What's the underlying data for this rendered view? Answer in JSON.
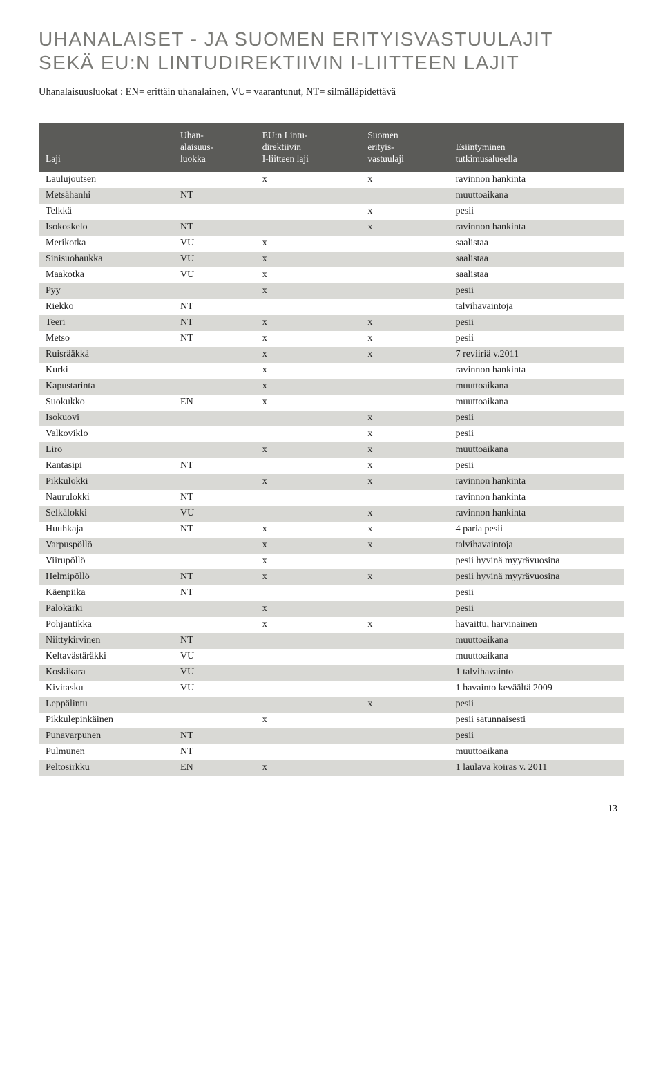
{
  "title_line1": "UHANALAISET - JA SUOMEN ERITYISVASTUULAJIT",
  "title_line2": "SEKÄ EU:N LINTUDIREKTIIVIN I-LIITTEEN LAJIT",
  "subtitle": "Uhanalaisuusluokat : EN= erittäin uhanalainen, VU= vaarantunut, NT= silmälläpidettävä",
  "columns": [
    "Laji",
    "Uhan-\nalaisuus-\nluokka",
    "EU:n Lintu-\ndirektiivin\nI-liitteen laji",
    "Suomen\nerityis-\nvastuulaji",
    "Esiintyminen\ntutkimusalueella"
  ],
  "rows": [
    [
      "Laulujoutsen",
      "",
      "x",
      "x",
      "ravinnon hankinta"
    ],
    [
      "Metsähanhi",
      "NT",
      "",
      "",
      "muuttoaikana"
    ],
    [
      "Telkkä",
      "",
      "",
      "x",
      "pesii"
    ],
    [
      "Isokoskelo",
      "NT",
      "",
      "x",
      "ravinnon hankinta"
    ],
    [
      "Merikotka",
      "VU",
      "x",
      "",
      "saalistaa"
    ],
    [
      "Sinisuohaukka",
      "VU",
      "x",
      "",
      "saalistaa"
    ],
    [
      "Maakotka",
      "VU",
      "x",
      "",
      "saalistaa"
    ],
    [
      "Pyy",
      "",
      "x",
      "",
      "pesii"
    ],
    [
      "Riekko",
      "NT",
      "",
      "",
      "talvihavaintoja"
    ],
    [
      "Teeri",
      "NT",
      "x",
      "x",
      "pesii"
    ],
    [
      "Metso",
      "NT",
      "x",
      "x",
      "pesii"
    ],
    [
      "Ruisrääkkä",
      "",
      "x",
      "x",
      "7 reviiriä v.2011"
    ],
    [
      "Kurki",
      "",
      "x",
      "",
      "ravinnon hankinta"
    ],
    [
      "Kapustarinta",
      "",
      "x",
      "",
      "muuttoaikana"
    ],
    [
      "Suokukko",
      "EN",
      "x",
      "",
      "muuttoaikana"
    ],
    [
      "Isokuovi",
      "",
      "",
      "x",
      "pesii"
    ],
    [
      "Valkoviklo",
      "",
      "",
      "x",
      "pesii"
    ],
    [
      "Liro",
      "",
      "x",
      "x",
      "muuttoaikana"
    ],
    [
      "Rantasipi",
      "NT",
      "",
      "x",
      "pesii"
    ],
    [
      "Pikkulokki",
      "",
      "x",
      "x",
      "ravinnon hankinta"
    ],
    [
      "Naurulokki",
      "NT",
      "",
      "",
      "ravinnon hankinta"
    ],
    [
      "Selkälokki",
      "VU",
      "",
      "x",
      "ravinnon hankinta"
    ],
    [
      "Huuhkaja",
      "NT",
      "x",
      "x",
      "4 paria pesii"
    ],
    [
      "Varpuspöllö",
      "",
      "x",
      "x",
      "talvihavaintoja"
    ],
    [
      "Viirupöllö",
      "",
      "x",
      "",
      "pesii hyvinä myyrävuosina"
    ],
    [
      "Helmipöllö",
      "NT",
      "x",
      "x",
      "pesii hyvinä myyrävuosina"
    ],
    [
      "Käenpiika",
      "NT",
      "",
      "",
      "pesii"
    ],
    [
      "Palokärki",
      "",
      "x",
      "",
      "pesii"
    ],
    [
      "Pohjantikka",
      "",
      "x",
      "x",
      "havaittu, harvinainen"
    ],
    [
      "Niittykirvinen",
      "NT",
      "",
      "",
      "muuttoaikana"
    ],
    [
      "Keltavästäräkki",
      "VU",
      "",
      "",
      "muuttoaikana"
    ],
    [
      "Koskikara",
      "VU",
      "",
      "",
      "1 talvihavainto"
    ],
    [
      "Kivitasku",
      "VU",
      "",
      "",
      "1 havainto keväältä 2009"
    ],
    [
      "Leppälintu",
      "",
      "",
      "x",
      "pesii"
    ],
    [
      "Pikkulepinkäinen",
      "",
      "x",
      "",
      "pesii satunnaisesti"
    ],
    [
      "Punavarpunen",
      "NT",
      "",
      "",
      "pesii"
    ],
    [
      "Pulmunen",
      "NT",
      "",
      "",
      "muuttoaikana"
    ],
    [
      "Peltosirkku",
      "EN",
      "x",
      "",
      "1 laulava koiras v. 2011"
    ]
  ],
  "page_number": "13",
  "colors": {
    "title": "#7a7a76",
    "header_bg": "#5b5b58",
    "header_fg": "#ffffff",
    "row_alt_bg": "#d9d9d5",
    "text": "#222222",
    "background": "#ffffff"
  }
}
